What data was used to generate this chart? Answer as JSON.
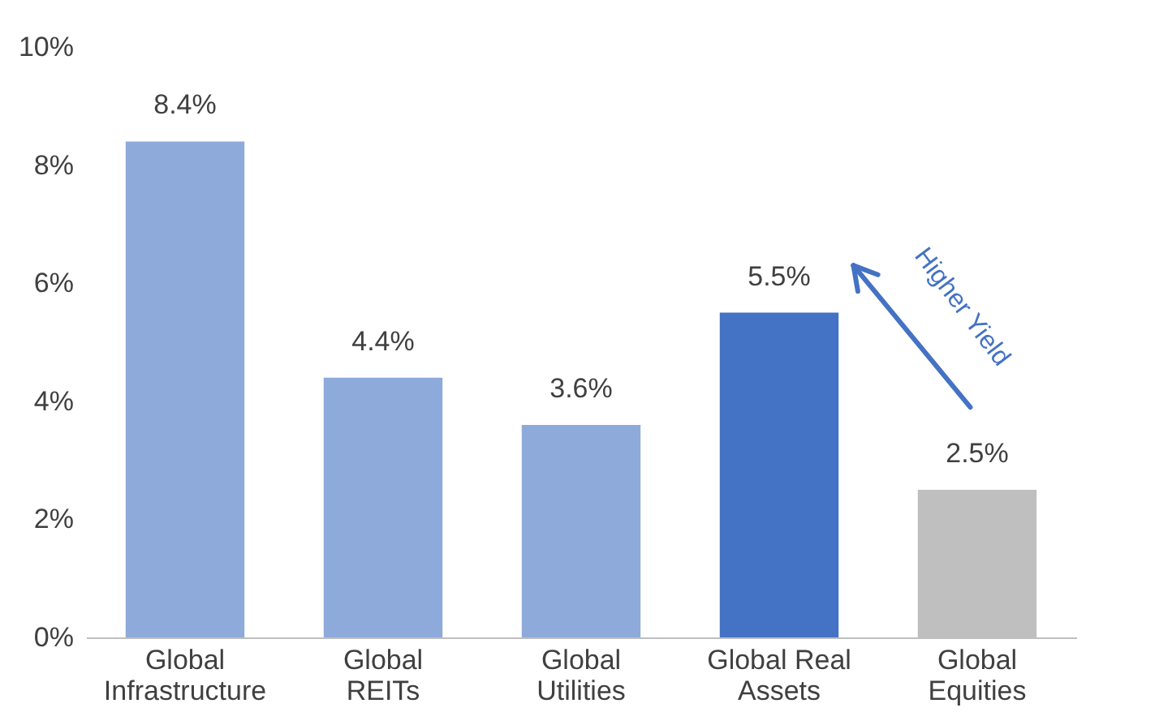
{
  "chart_data": {
    "type": "bar",
    "categories": [
      "Global Infrastructure",
      "Global REITs",
      "Global Utilities",
      "Global Real Assets",
      "Global Equities"
    ],
    "values": [
      8.4,
      4.4,
      3.6,
      5.5,
      2.5
    ],
    "colors": [
      "#8eaadb",
      "#8eaadb",
      "#8eaadb",
      "#4472c4",
      "#bfbfbf"
    ],
    "value_labels": [
      "8.4%",
      "4.4%",
      "3.6%",
      "5.5%",
      "2.5%"
    ],
    "ylim": [
      0,
      10
    ],
    "yticks": [
      {
        "value": 0,
        "label": "0%"
      },
      {
        "value": 2,
        "label": "2%"
      },
      {
        "value": 4,
        "label": "4%"
      },
      {
        "value": 6,
        "label": "6%"
      },
      {
        "value": 8,
        "label": "8%"
      },
      {
        "value": 10,
        "label": "10%"
      }
    ],
    "annotations": [
      "Higher Yield"
    ],
    "grid": false
  }
}
